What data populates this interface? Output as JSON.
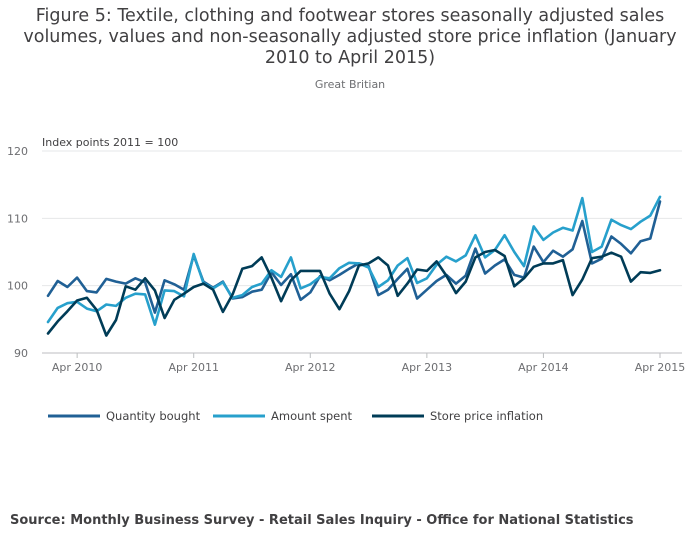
{
  "title": "Figure 5: Textile, clothing and footwear stores seasonally adjusted sales volumes, values and non-seasonally adjusted store price inflation (January 2010 to April 2015)",
  "subtitle": "Great Britian",
  "source": "Source: Monthly Business Survey - Retail Sales Inquiry - Office for National Statistics",
  "chart_data": {
    "type": "line",
    "ylabel": "Index points 2011 = 100",
    "ylim": [
      90,
      120
    ],
    "yticks": [
      90,
      100,
      110,
      120
    ],
    "xticks": [
      "Apr 2010",
      "Apr 2011",
      "Apr 2012",
      "Apr 2013",
      "Apr 2014",
      "Apr 2015"
    ],
    "xtick_index": [
      3,
      15,
      27,
      39,
      51,
      63
    ],
    "x_start": "Jan 2010",
    "x_end": "Apr 2015",
    "grid": true,
    "legend_position": "bottom",
    "series": [
      {
        "name": "Quantity bought",
        "color": "#206095",
        "values": [
          98.5,
          100.7,
          99.8,
          101.2,
          99.2,
          99.0,
          101.0,
          100.6,
          100.3,
          101.1,
          100.5,
          96.0,
          100.8,
          100.2,
          99.4,
          104.5,
          100.6,
          99.7,
          100.6,
          98.1,
          98.3,
          99.1,
          99.4,
          102.0,
          100.1,
          101.7,
          97.9,
          99.0,
          101.4,
          100.8,
          101.6,
          102.5,
          103.3,
          102.9,
          98.6,
          99.4,
          101.0,
          102.5,
          98.1,
          99.4,
          100.7,
          101.6,
          100.3,
          101.5,
          105.5,
          101.8,
          103.0,
          103.9,
          101.6,
          101.2,
          105.8,
          103.5,
          105.2,
          104.3,
          105.4,
          109.6,
          103.3,
          104.0,
          107.3,
          106.2,
          104.8,
          106.6,
          107.0,
          112.5
        ]
      },
      {
        "name": "Amount spent",
        "color": "#27a0cc",
        "values": [
          94.6,
          96.7,
          97.4,
          97.6,
          96.6,
          96.2,
          97.2,
          97.0,
          98.2,
          98.8,
          98.7,
          94.2,
          99.3,
          99.2,
          98.4,
          104.7,
          100.4,
          99.6,
          100.5,
          98.2,
          98.6,
          99.8,
          100.3,
          102.3,
          101.3,
          104.2,
          99.6,
          100.2,
          101.3,
          101.1,
          102.6,
          103.4,
          103.3,
          102.7,
          99.8,
          100.8,
          103.0,
          104.1,
          100.4,
          101.1,
          103.1,
          104.3,
          103.6,
          104.5,
          107.5,
          104.2,
          105.3,
          107.5,
          105.0,
          102.9,
          108.8,
          106.8,
          107.9,
          108.6,
          108.2,
          113.0,
          105.0,
          105.8,
          109.8,
          109.0,
          108.4,
          109.5,
          110.4,
          113.2
        ]
      },
      {
        "name": "Store price inflation",
        "color": "#003c57",
        "values": [
          92.9,
          94.7,
          96.2,
          97.8,
          98.2,
          96.4,
          92.6,
          94.9,
          99.9,
          99.4,
          101.1,
          99.3,
          95.2,
          97.9,
          98.8,
          99.8,
          100.3,
          99.4,
          96.1,
          98.7,
          102.5,
          102.9,
          104.2,
          101.2,
          97.7,
          100.8,
          102.2,
          102.2,
          102.2,
          98.8,
          96.5,
          99.2,
          103.0,
          103.3,
          104.2,
          103.0,
          98.5,
          100.3,
          102.4,
          102.2,
          103.6,
          101.5,
          98.9,
          100.6,
          104.2,
          105.0,
          105.3,
          104.4,
          99.9,
          101.1,
          102.8,
          103.3,
          103.3,
          103.8,
          98.6,
          100.9,
          104.1,
          104.3,
          104.9,
          104.3,
          100.6,
          102.0,
          101.9,
          102.3
        ]
      }
    ]
  }
}
